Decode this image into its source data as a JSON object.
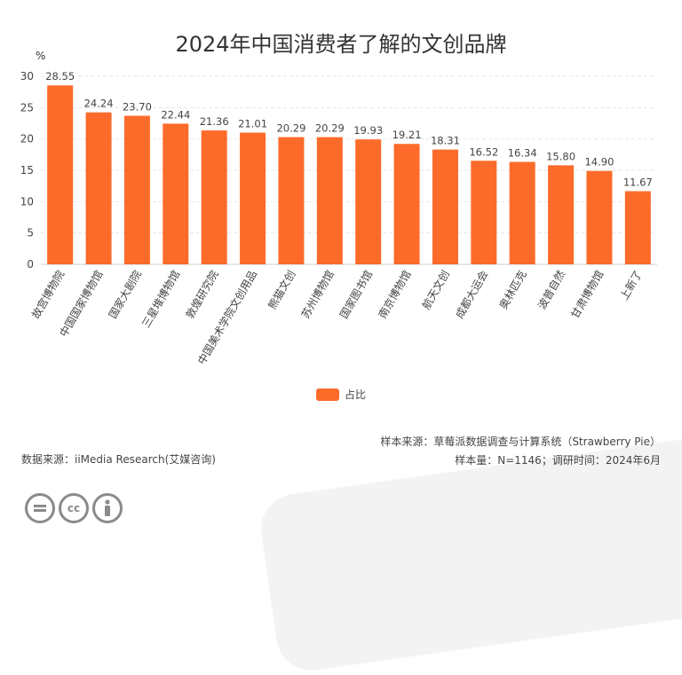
{
  "title": "2024年中国消费者了解的文创品牌",
  "unit_label": "%",
  "legend_label": "占比",
  "source_left": "数据来源：iiMedia Research(艾媒咨询)",
  "source_right_1": "样本来源：草莓派数据调查与计算系统（Strawberry Pie）",
  "source_right_2": "样本量：N=1146；调研时间：2024年6月",
  "license_icons": [
    "equal-icon",
    "cc-icon",
    "person-icon"
  ],
  "license_texts": [
    "cc"
  ],
  "colors": {
    "bar": "#fd6b2a",
    "grid": "#e6e6e6",
    "axis": "#cccccc"
  },
  "chart_data": {
    "type": "bar",
    "title": "2024年中国消费者了解的文创品牌",
    "ylabel": "%",
    "ylim": [
      0,
      30
    ],
    "yticks": [
      0,
      5,
      10,
      15,
      20,
      25,
      30
    ],
    "grid": true,
    "legend": "bottom",
    "categories": [
      "故宫博物院",
      "中国国家博物馆",
      "国家大剧院",
      "三星堆博物馆",
      "敦煌研究院",
      "中国美术学院文创用品",
      "熊猫文创",
      "苏州博物馆",
      "国家图书馆",
      "南京博物馆",
      "航天文创",
      "成都大运会",
      "奥林匹克",
      "波普自然",
      "甘肃博物馆",
      "上新了"
    ],
    "series": [
      {
        "name": "占比",
        "values": [
          28.55,
          24.24,
          23.7,
          22.44,
          21.36,
          21.01,
          20.29,
          20.29,
          19.93,
          19.21,
          18.31,
          16.52,
          16.34,
          15.8,
          14.9,
          11.67
        ]
      }
    ],
    "value_labels": [
      "28.55",
      "24.24",
      "23.70",
      "22.44",
      "21.36",
      "21.01",
      "20.29",
      "20.29",
      "19.93",
      "19.21",
      "18.31",
      "16.52",
      "16.34",
      "15.80",
      "14.90",
      "11.67"
    ]
  }
}
